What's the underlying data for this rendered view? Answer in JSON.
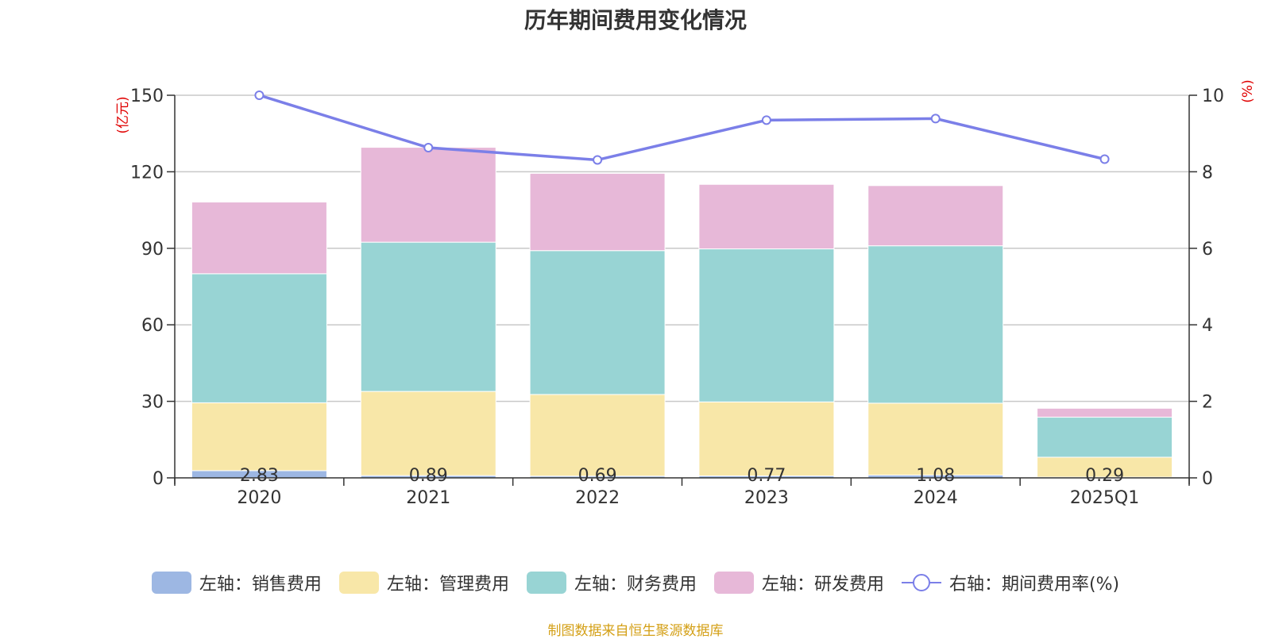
{
  "chart_data": {
    "type": "bar",
    "title": "历年期间费用变化情况",
    "categories": [
      "2020",
      "2021",
      "2022",
      "2023",
      "2024",
      "2025Q1"
    ],
    "left_axis": {
      "label": "(亿元)",
      "ylim": [
        0,
        150
      ],
      "ticks": [
        0,
        30,
        60,
        90,
        120,
        150
      ]
    },
    "right_axis": {
      "label": "(%)",
      "ylim": [
        0,
        10
      ],
      "ticks": [
        0,
        2,
        4,
        6,
        8,
        10
      ]
    },
    "stacked": true,
    "series": [
      {
        "name": "左轴：销售费用",
        "type": "bar",
        "axis": "left",
        "color": "#9db7e3",
        "values": [
          2.83,
          0.89,
          0.69,
          0.77,
          1.08,
          0.29
        ],
        "data_labels": [
          "2.83",
          "0.89",
          "0.69",
          "0.77",
          "1.08",
          "0.29"
        ]
      },
      {
        "name": "左轴：管理费用",
        "type": "bar",
        "axis": "left",
        "color": "#f8e7a8",
        "values": [
          26.6,
          33.0,
          32.0,
          29.0,
          28.2,
          7.8
        ]
      },
      {
        "name": "左轴：财务费用",
        "type": "bar",
        "axis": "left",
        "color": "#98d4d4",
        "values": [
          50.6,
          58.5,
          56.4,
          60.0,
          61.7,
          15.7
        ]
      },
      {
        "name": "左轴：研发费用",
        "type": "bar",
        "axis": "left",
        "color": "#e7b8d8",
        "values": [
          28.1,
          37.2,
          30.3,
          25.3,
          23.6,
          3.5
        ]
      },
      {
        "name": "右轴：期间费用率(%)",
        "type": "line",
        "axis": "right",
        "color": "#7b7fe8",
        "values": [
          10.0,
          8.63,
          8.31,
          9.35,
          9.39,
          8.33
        ]
      }
    ],
    "grid": true,
    "legend_position": "bottom"
  },
  "source_note": "制图数据来自恒生聚源数据库"
}
